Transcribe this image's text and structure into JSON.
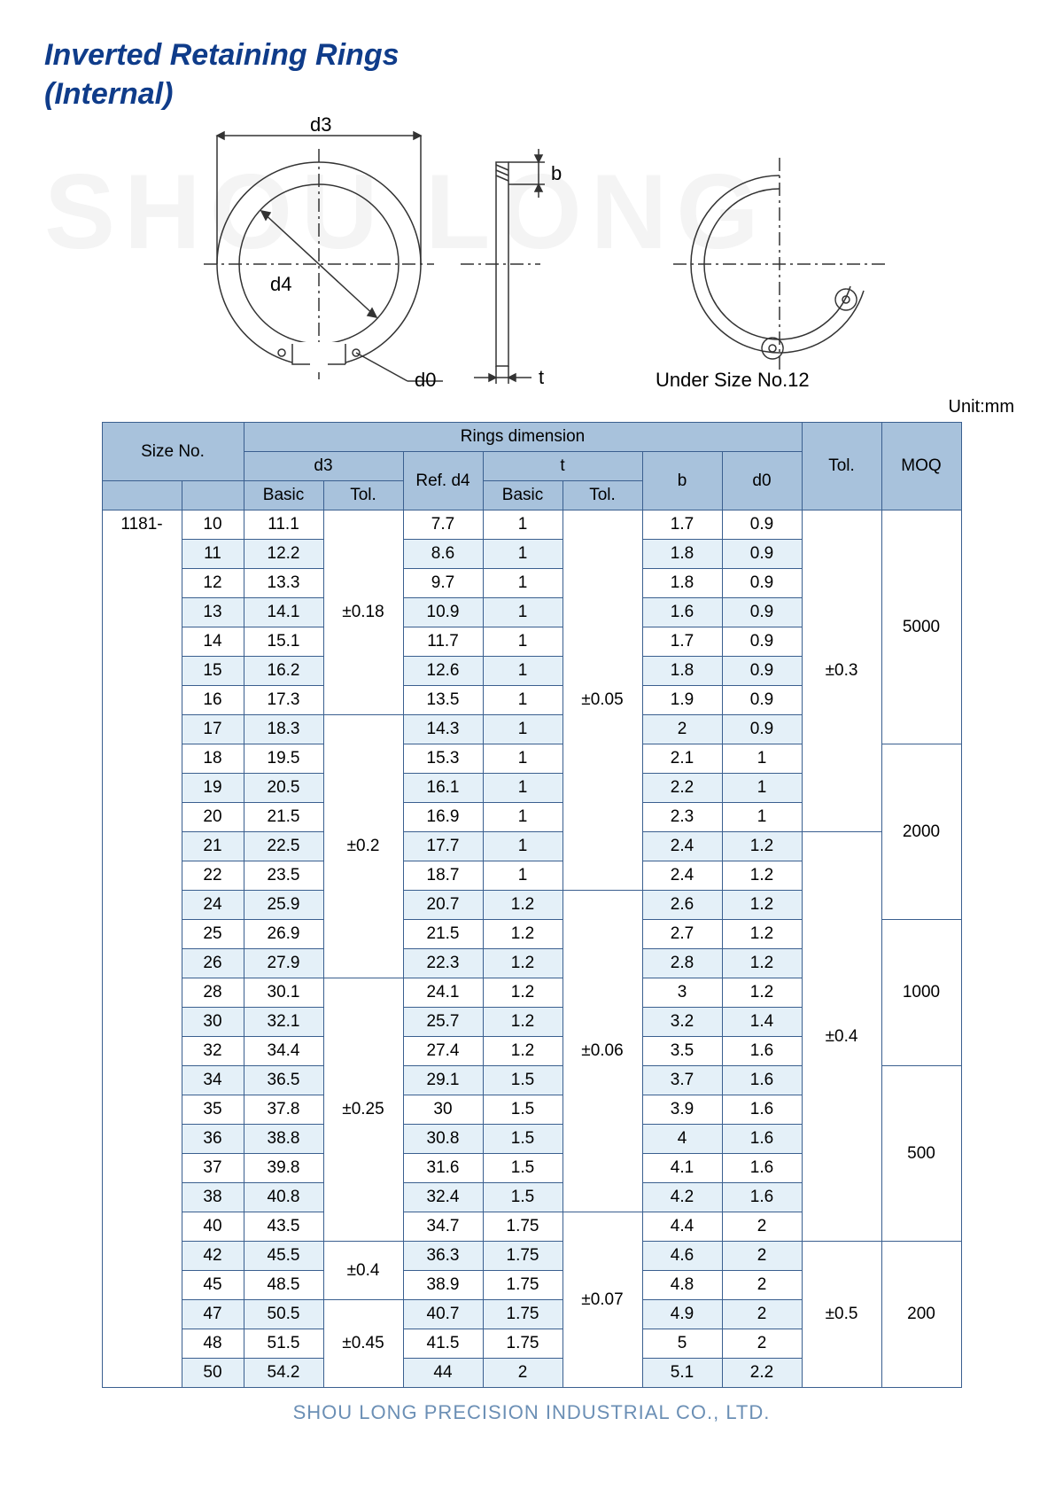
{
  "title_line1": "Inverted Retaining Rings",
  "title_line2": "(Internal)",
  "watermark": "SHOU LONG",
  "diagram": {
    "d3": "d3",
    "d4": "d4",
    "d0": "d0",
    "b": "b",
    "t": "t",
    "under_size": "Under Size No.12"
  },
  "unit_label": "Unit:mm",
  "headers": {
    "size_no": "Size No.",
    "rings_dim": "Rings dimension",
    "moq": "MOQ",
    "d3": "d3",
    "ref_d4": "Ref. d4",
    "t": "t",
    "b": "b",
    "d0": "d0",
    "tol": "Tol.",
    "basic": "Basic"
  },
  "series": "1181-",
  "cols": {
    "c0": 90,
    "c1": 70,
    "c2": 90,
    "c3": 90,
    "c4": 90,
    "c5": 90,
    "c6": 90,
    "c7": 90,
    "c8": 90,
    "c9": 90,
    "c10": 90
  },
  "rows": [
    {
      "n": "10",
      "d3b": "11.1",
      "d4": "7.7",
      "tb": "1",
      "b": "1.7",
      "d0": "0.9"
    },
    {
      "n": "11",
      "d3b": "12.2",
      "d4": "8.6",
      "tb": "1",
      "b": "1.8",
      "d0": "0.9"
    },
    {
      "n": "12",
      "d3b": "13.3",
      "d4": "9.7",
      "tb": "1",
      "b": "1.8",
      "d0": "0.9"
    },
    {
      "n": "13",
      "d3b": "14.1",
      "d4": "10.9",
      "tb": "1",
      "b": "1.6",
      "d0": "0.9"
    },
    {
      "n": "14",
      "d3b": "15.1",
      "d4": "11.7",
      "tb": "1",
      "b": "1.7",
      "d0": "0.9"
    },
    {
      "n": "15",
      "d3b": "16.2",
      "d4": "12.6",
      "tb": "1",
      "b": "1.8",
      "d0": "0.9"
    },
    {
      "n": "16",
      "d3b": "17.3",
      "d4": "13.5",
      "tb": "1",
      "b": "1.9",
      "d0": "0.9"
    },
    {
      "n": "17",
      "d3b": "18.3",
      "d4": "14.3",
      "tb": "1",
      "b": "2",
      "d0": "0.9"
    },
    {
      "n": "18",
      "d3b": "19.5",
      "d4": "15.3",
      "tb": "1",
      "b": "2.1",
      "d0": "1"
    },
    {
      "n": "19",
      "d3b": "20.5",
      "d4": "16.1",
      "tb": "1",
      "b": "2.2",
      "d0": "1"
    },
    {
      "n": "20",
      "d3b": "21.5",
      "d4": "16.9",
      "tb": "1",
      "b": "2.3",
      "d0": "1"
    },
    {
      "n": "21",
      "d3b": "22.5",
      "d4": "17.7",
      "tb": "1",
      "b": "2.4",
      "d0": "1.2"
    },
    {
      "n": "22",
      "d3b": "23.5",
      "d4": "18.7",
      "tb": "1",
      "b": "2.4",
      "d0": "1.2"
    },
    {
      "n": "24",
      "d3b": "25.9",
      "d4": "20.7",
      "tb": "1.2",
      "b": "2.6",
      "d0": "1.2"
    },
    {
      "n": "25",
      "d3b": "26.9",
      "d4": "21.5",
      "tb": "1.2",
      "b": "2.7",
      "d0": "1.2"
    },
    {
      "n": "26",
      "d3b": "27.9",
      "d4": "22.3",
      "tb": "1.2",
      "b": "2.8",
      "d0": "1.2"
    },
    {
      "n": "28",
      "d3b": "30.1",
      "d4": "24.1",
      "tb": "1.2",
      "b": "3",
      "d0": "1.2"
    },
    {
      "n": "30",
      "d3b": "32.1",
      "d4": "25.7",
      "tb": "1.2",
      "b": "3.2",
      "d0": "1.4"
    },
    {
      "n": "32",
      "d3b": "34.4",
      "d4": "27.4",
      "tb": "1.2",
      "b": "3.5",
      "d0": "1.6"
    },
    {
      "n": "34",
      "d3b": "36.5",
      "d4": "29.1",
      "tb": "1.5",
      "b": "3.7",
      "d0": "1.6"
    },
    {
      "n": "35",
      "d3b": "37.8",
      "d4": "30",
      "tb": "1.5",
      "b": "3.9",
      "d0": "1.6"
    },
    {
      "n": "36",
      "d3b": "38.8",
      "d4": "30.8",
      "tb": "1.5",
      "b": "4",
      "d0": "1.6"
    },
    {
      "n": "37",
      "d3b": "39.8",
      "d4": "31.6",
      "tb": "1.5",
      "b": "4.1",
      "d0": "1.6"
    },
    {
      "n": "38",
      "d3b": "40.8",
      "d4": "32.4",
      "tb": "1.5",
      "b": "4.2",
      "d0": "1.6"
    },
    {
      "n": "40",
      "d3b": "43.5",
      "d4": "34.7",
      "tb": "1.75",
      "b": "4.4",
      "d0": "2"
    },
    {
      "n": "42",
      "d3b": "45.5",
      "d4": "36.3",
      "tb": "1.75",
      "b": "4.6",
      "d0": "2"
    },
    {
      "n": "45",
      "d3b": "48.5",
      "d4": "38.9",
      "tb": "1.75",
      "b": "4.8",
      "d0": "2"
    },
    {
      "n": "47",
      "d3b": "50.5",
      "d4": "40.7",
      "tb": "1.75",
      "b": "4.9",
      "d0": "2"
    },
    {
      "n": "48",
      "d3b": "51.5",
      "d4": "41.5",
      "tb": "1.75",
      "b": "5",
      "d0": "2"
    },
    {
      "n": "50",
      "d3b": "54.2",
      "d4": "44",
      "tb": "2",
      "b": "5.1",
      "d0": "2.2"
    }
  ],
  "d3tol_groups": [
    {
      "span": 7,
      "val": "±0.18"
    },
    {
      "span": 9,
      "val": "±0.2"
    },
    {
      "span": 9,
      "val": "±0.25"
    },
    {
      "span": 2,
      "val": "±0.4"
    },
    {
      "span": 3,
      "val": "±0.45"
    }
  ],
  "ttol_groups": [
    {
      "span": 13,
      "val": "±0.05"
    },
    {
      "span": 11,
      "val": "±0.06"
    },
    {
      "span": 6,
      "val": "±0.07"
    }
  ],
  "tol_groups": [
    {
      "span": 11,
      "val": "±0.3"
    },
    {
      "span": 14,
      "val": "±0.4"
    },
    {
      "span": 5,
      "val": "±0.5"
    }
  ],
  "moq_groups": [
    {
      "span": 8,
      "val": "5000"
    },
    {
      "span": 6,
      "val": "2000"
    },
    {
      "span": 5,
      "val": "1000"
    },
    {
      "span": 6,
      "val": "500"
    },
    {
      "span": 5,
      "val": "200"
    }
  ],
  "footer": "SHOU LONG PRECISION INDUSTRIAL CO., LTD."
}
